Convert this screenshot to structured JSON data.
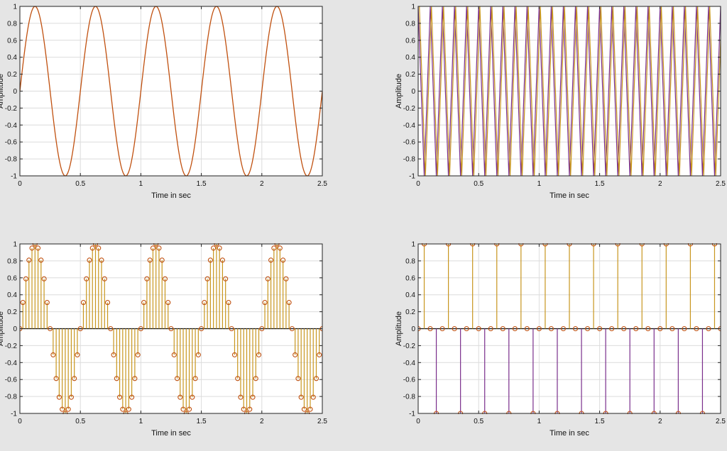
{
  "figure": {
    "background": "#e5e5e5",
    "axes_background": "#ffffff",
    "grid_color": "#dcdcdc",
    "line_color": "#c0500f",
    "alt_line_color": "#7a2e8c",
    "marker_color": "#c0500f",
    "stem_color": "#c8961e"
  },
  "chart_data": [
    {
      "type": "line",
      "signal": "sin(2*pi*2*t)",
      "frequency_hz": 2,
      "amplitude": 1,
      "x_range": [
        0,
        2.5
      ],
      "xlabel": "Time in sec",
      "ylabel": "Amplitude",
      "xlim": [
        0,
        2.5
      ],
      "ylim": [
        -1,
        1
      ],
      "xticks": [
        "0",
        "0.5",
        "1",
        "1.5",
        "2",
        "2.5"
      ],
      "yticks": [
        "1",
        "0.8",
        "0.6",
        "0.4",
        "0.2",
        "0",
        "-0.2",
        "-0.4",
        "-0.6",
        "-0.8",
        "-1"
      ],
      "grid": true
    },
    {
      "type": "line",
      "signal": "sin(2*pi*f*t) (aliased)",
      "frequency_hz": 10,
      "amplitude": 1,
      "x_range": [
        0,
        2.5
      ],
      "xlabel": "Time in sec",
      "ylabel": "Amplitude",
      "xlim": [
        0,
        2.5
      ],
      "ylim": [
        -1,
        1
      ],
      "xticks": [
        "0",
        "0.5",
        "1",
        "1.5",
        "2",
        "2.5"
      ],
      "yticks": [
        "1",
        "0.8",
        "0.6",
        "0.4",
        "0.2",
        "0",
        "-0.2",
        "-0.4",
        "-0.6",
        "-0.8",
        "-1"
      ],
      "grid": true
    },
    {
      "type": "stem",
      "signal": "sin(2*pi*2*t) sampled",
      "frequency_hz": 2,
      "sample_interval_s": 0.025,
      "x_range": [
        0,
        2.5
      ],
      "xlabel": "Time in sec",
      "ylabel": "Amplitude",
      "xlim": [
        0,
        2.5
      ],
      "ylim": [
        -1,
        1
      ],
      "xticks": [
        "0",
        "0.5",
        "1",
        "1.5",
        "2",
        "2.5"
      ],
      "yticks": [
        "1",
        "0.8",
        "0.6",
        "0.4",
        "0.2",
        "0",
        "-0.2",
        "-0.4",
        "-0.6",
        "-0.8",
        "-1"
      ],
      "grid": true
    },
    {
      "type": "stem",
      "signal": "sampled alternating sequence",
      "sample_interval_s": 0.05,
      "pattern": [
        0,
        1,
        0,
        -1
      ],
      "x_range": [
        0,
        2.5
      ],
      "xlabel": "Time in sec",
      "ylabel": "Amplitude",
      "xlim": [
        0,
        2.5
      ],
      "ylim": [
        -1,
        1
      ],
      "xticks": [
        "0",
        "0.5",
        "1",
        "1.5",
        "2",
        "2.5"
      ],
      "yticks": [
        "1",
        "0.8",
        "0.6",
        "0.4",
        "0.2",
        "0",
        "-0.2",
        "-0.4",
        "-0.6",
        "-0.8",
        "-1"
      ],
      "grid": true
    }
  ]
}
